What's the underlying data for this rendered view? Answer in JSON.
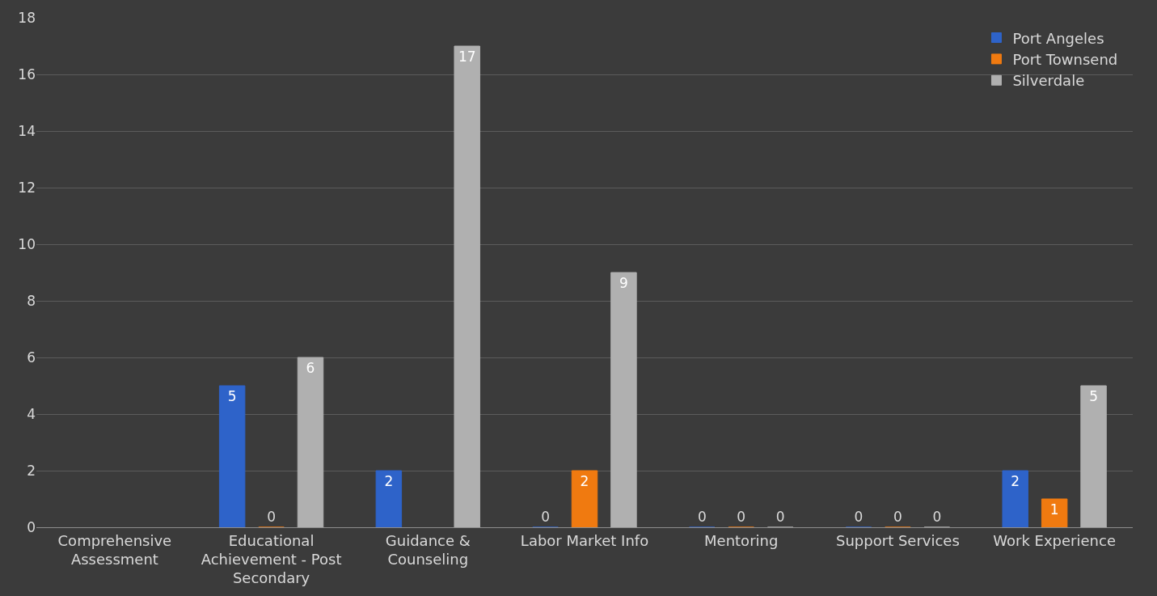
{
  "chart_data": {
    "type": "bar",
    "categories": [
      "Comprehensive Assessment",
      "Educational Achievement - Post Secondary",
      "Guidance & Counseling",
      "Labor Market Info",
      "Mentoring",
      "Support Services",
      "Work Experience"
    ],
    "series": [
      {
        "name": "Port Angeles",
        "color": "#2e63c9",
        "values": [
          null,
          5,
          2,
          0,
          0,
          0,
          2
        ]
      },
      {
        "name": "Port Townsend",
        "color": "#f07a10",
        "values": [
          null,
          0,
          null,
          2,
          0,
          0,
          1
        ]
      },
      {
        "name": "Silverdale",
        "color": "#b0b0b0",
        "values": [
          null,
          6,
          17,
          9,
          0,
          0,
          5
        ]
      }
    ],
    "ylim": [
      0,
      18
    ],
    "yticks": [
      0,
      2,
      4,
      6,
      8,
      10,
      12,
      14,
      16,
      18
    ],
    "grid": "y",
    "legend": "top right",
    "data_labels": true
  }
}
